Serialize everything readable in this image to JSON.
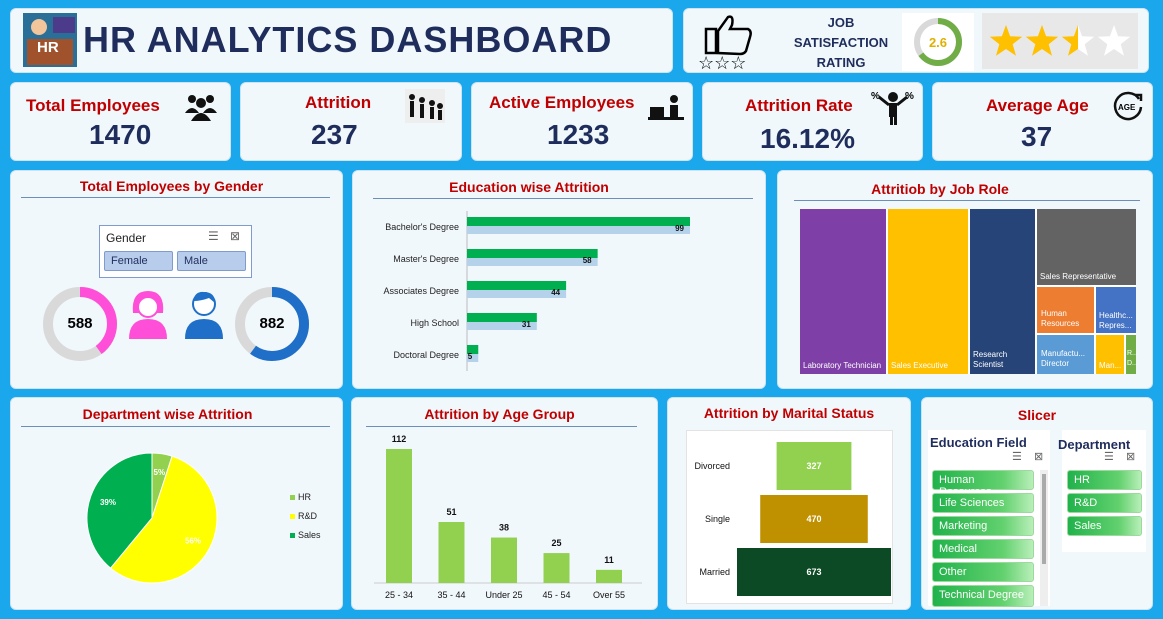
{
  "header": {
    "title": "HR ANALYTICS DASHBOARD",
    "logo_text": "HR"
  },
  "rating": {
    "label_l1": "JOB",
    "label_l2": "SATISFACTION",
    "label_l3": "RATING",
    "value": "2.6",
    "stars_filled": 2.6,
    "stars_max": 4
  },
  "kpis": [
    {
      "label": "Total Employees",
      "value": "1470",
      "icon": "people-group-icon"
    },
    {
      "label": "Attrition",
      "value": "237",
      "icon": "people-leaving-icon"
    },
    {
      "label": "Active Employees",
      "value": "1233",
      "icon": "person-at-desk-icon"
    },
    {
      "label": "Attrition Rate",
      "value": "16.12%",
      "icon": "percent-person-icon"
    },
    {
      "label": "Average Age",
      "value": "37",
      "icon": "age-icon"
    }
  ],
  "gender": {
    "title": "Total Employees by Gender",
    "slicer_label": "Gender",
    "options": [
      "Female",
      "Male"
    ],
    "female_value": "588",
    "male_value": "882",
    "female_fraction": 0.4,
    "male_fraction": 0.6
  },
  "education": {
    "title": "Education wise Attrition",
    "chart_data": {
      "type": "bar",
      "categories": [
        "Bachelor's Degree",
        "Master's Degree",
        "Associates Degree",
        "High School",
        "Doctoral Degree"
      ],
      "values": [
        99,
        58,
        44,
        31,
        5
      ]
    }
  },
  "jobrole": {
    "title": "Attritiob by Job Role",
    "tiles": [
      {
        "label": "Laboratory Technician",
        "color": "#7e3fa7"
      },
      {
        "label": "Sales Executive",
        "color": "#ffc000"
      },
      {
        "label": "Research Scientist",
        "color": "#264478"
      },
      {
        "label": "Sales Representative",
        "color": "#636363"
      },
      {
        "label": "Human Resources",
        "color": "#ed7d31"
      },
      {
        "label": "Healthc... Repres...",
        "color": "#4472c4"
      },
      {
        "label": "Manufactu... Director",
        "color": "#5b9bd5"
      },
      {
        "label": "Man...",
        "color": "#ffc000"
      },
      {
        "label": "R... D...",
        "color": "#70ad47"
      }
    ]
  },
  "department": {
    "title": "Department wise Attrition",
    "chart_data": {
      "type": "pie",
      "categories": [
        "HR",
        "R&D",
        "Sales"
      ],
      "values": [
        5,
        56,
        39
      ],
      "labels": [
        "5%",
        "56%",
        "39%"
      ],
      "colors": [
        "#92d050",
        "#ffff00",
        "#00b050"
      ]
    }
  },
  "age": {
    "title": "Attrition by Age Group",
    "chart_data": {
      "type": "bar",
      "categories": [
        "25 - 34",
        "35 - 44",
        "Under 25",
        "45 - 54",
        "Over 55"
      ],
      "values": [
        112,
        51,
        38,
        25,
        11
      ]
    }
  },
  "marital": {
    "title": "Attrition by Marital Status",
    "chart_data": {
      "type": "bar",
      "categories": [
        "Divorced",
        "Single",
        "Married"
      ],
      "values": [
        327,
        470,
        673
      ],
      "colors": [
        "#92d050",
        "#bf9000",
        "#0b4a24"
      ]
    }
  },
  "slicer": {
    "title": "Slicer",
    "edu_label": "Education Field",
    "edu_items": [
      "Human Resources",
      "Life Sciences",
      "Marketing",
      "Medical",
      "Other",
      "Technical Degree"
    ],
    "dept_label": "Department",
    "dept_items": [
      "HR",
      "R&D",
      "Sales"
    ]
  }
}
